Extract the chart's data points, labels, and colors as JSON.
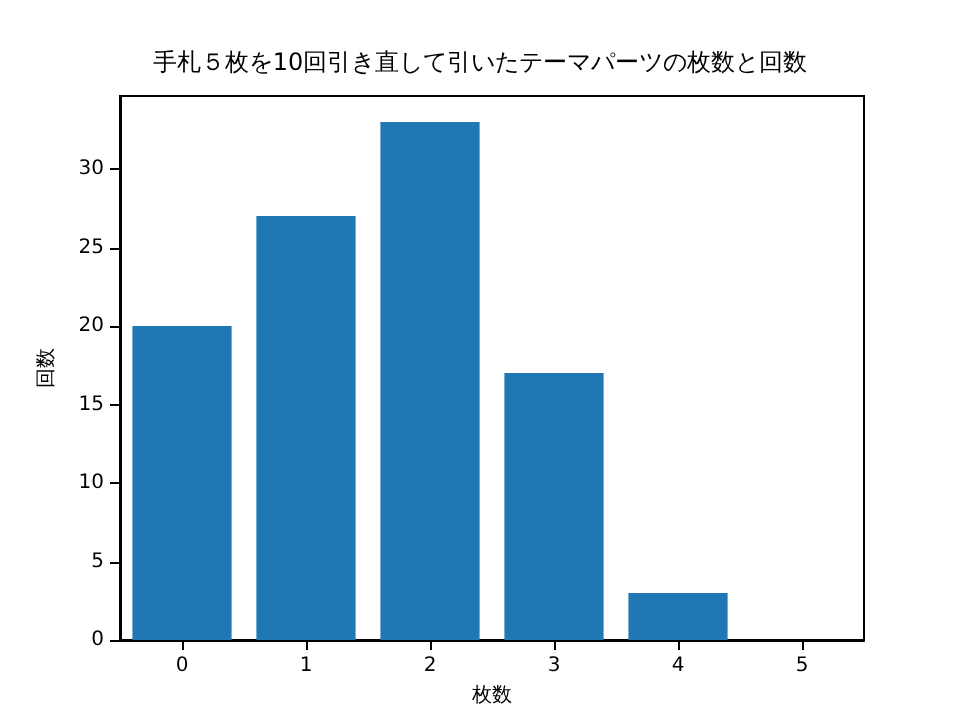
{
  "chart_data": {
    "type": "bar",
    "title": "手札５枚を10回引き直して引いたテーマパーツの枚数と回数",
    "xlabel": "枚数",
    "ylabel": "回数",
    "categories": [
      "0",
      "1",
      "2",
      "3",
      "4",
      "5"
    ],
    "values": [
      20,
      27,
      33,
      17,
      3,
      0
    ],
    "color": "#1f77b4",
    "ylim": [
      0,
      34.65
    ],
    "yticks": [
      0,
      5,
      10,
      15,
      20,
      25,
      30
    ],
    "grid": false
  }
}
